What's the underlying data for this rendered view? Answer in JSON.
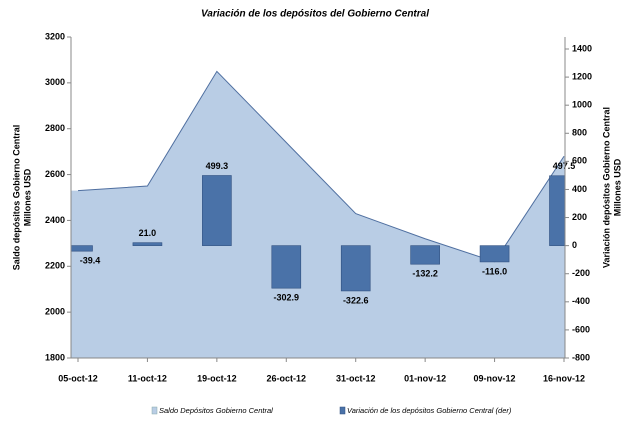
{
  "chart_data": {
    "type": "combo",
    "title": "Variación de los depósitos del Gobierno Central",
    "categories": [
      "05-oct-12",
      "11-oct-12",
      "19-oct-12",
      "26-oct-12",
      "31-oct-12",
      "01-nov-12",
      "09-nov-12",
      "16-nov-12"
    ],
    "series": [
      {
        "name": "Saldo Depósitos Gobierno Central",
        "type": "area",
        "color": "#b9cde5",
        "line_color": "#4f6fa0",
        "axis": "y",
        "values": [
          2530,
          2550,
          3050,
          2740,
          2430,
          2320,
          2220,
          2680
        ]
      },
      {
        "name": "Variación de los depósitos Gobierno Central (der)",
        "type": "bar",
        "color": "#4a72a8",
        "axis": "y2",
        "values": [
          -39.4,
          21.0,
          499.3,
          -302.9,
          -322.6,
          -132.2,
          -116.0,
          497.5
        ],
        "value_labels": [
          "-39.4",
          "21.0",
          "499.3",
          "-302.9",
          "-322.6",
          "-132.2",
          "-116.0",
          "497.5"
        ]
      }
    ],
    "ylabel": [
      "Saldo depósitos Gobierno Central",
      "Millones USD"
    ],
    "y2label": [
      "Variación depósitos Gobierno Central",
      "Millones USD"
    ],
    "ylim": [
      1800,
      3200
    ],
    "yticks": [
      1800,
      2000,
      2200,
      2400,
      2600,
      2800,
      3000,
      3200
    ],
    "y2lim": [
      -800,
      1400
    ],
    "y2ticks": [
      -800,
      -600,
      -400,
      -200,
      0,
      200,
      400,
      600,
      800,
      1000,
      1200,
      1400
    ],
    "legend": "bottom"
  }
}
